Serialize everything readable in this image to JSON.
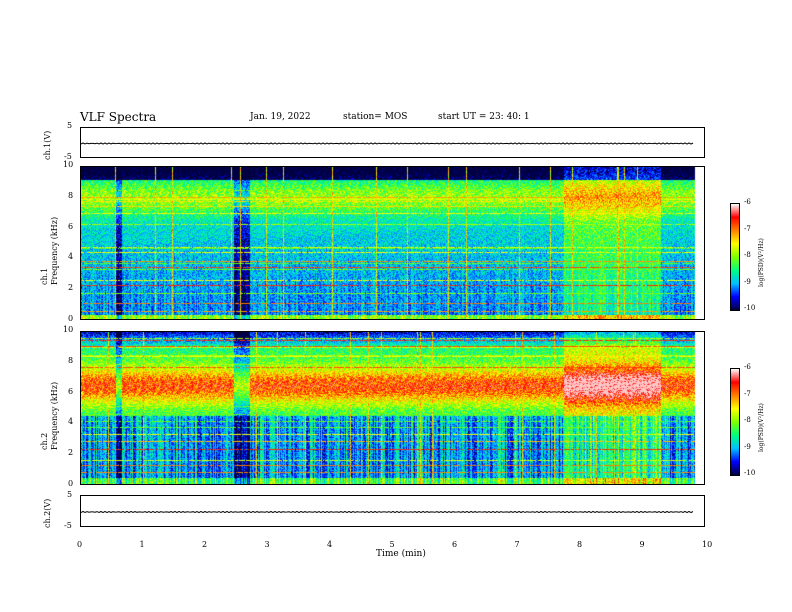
{
  "header": {
    "title": "VLF Spectra",
    "date": "Jan. 19, 2022",
    "station": "station= MOS",
    "start": "start  UT =   23: 40: 1"
  },
  "chart_data": {
    "type": "heatmap",
    "xlabel": "Time  (min)",
    "xlim": [
      0,
      10
    ],
    "x_ticks": [
      "0",
      "1",
      "2",
      "3",
      "4",
      "5",
      "6",
      "7",
      "8",
      "9",
      "10"
    ],
    "panels": [
      {
        "kind": "waveform",
        "ylabel": "ch.1(V)",
        "ylim": [
          -5,
          5
        ],
        "y_ticks": [
          "5",
          "-5"
        ],
        "level": -0.3
      },
      {
        "kind": "spectrogram",
        "ylabel": "ch.1\nFrequency (kHz)",
        "ylim": [
          0,
          10
        ],
        "y_ticks": [
          "0",
          "2",
          "4",
          "6",
          "8",
          "10"
        ]
      },
      {
        "kind": "spectrogram",
        "ylabel": "ch.2\nFrequency (kHz)",
        "ylim": [
          0,
          10
        ],
        "y_ticks": [
          "0",
          "2",
          "4",
          "6",
          "8",
          "10"
        ]
      },
      {
        "kind": "waveform",
        "ylabel": "ch.2(V)",
        "ylim": [
          -5,
          5
        ],
        "y_ticks": [
          "5",
          "-5"
        ],
        "level": -0.3
      }
    ],
    "colorbar": {
      "label": "log(PSD)(V²/Hz)",
      "range": [
        -10,
        -6
      ],
      "ticks": [
        "-6",
        "-7",
        "-8",
        "-9",
        "-10"
      ],
      "colors": [
        "#000040",
        "#0000ff",
        "#00c0ff",
        "#00ff80",
        "#80ff00",
        "#ffff00",
        "#ff8000",
        "#ff0000",
        "#ffffff"
      ]
    }
  }
}
